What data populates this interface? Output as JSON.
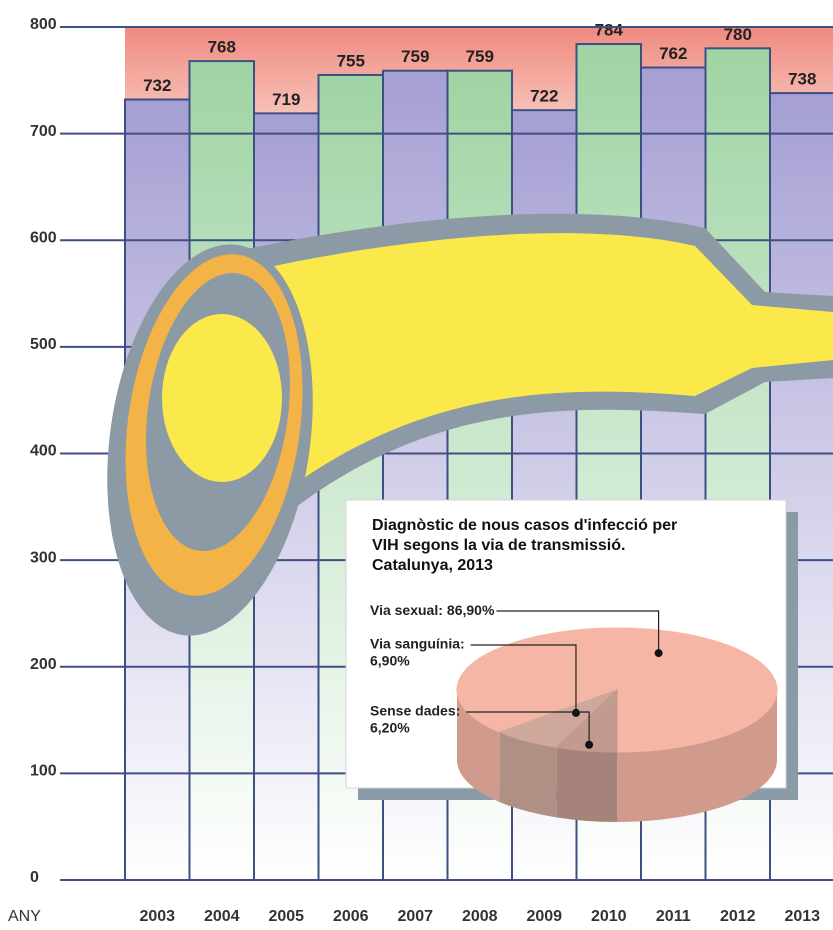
{
  "chart_data": [
    {
      "type": "bar",
      "xlabel": "ANY",
      "categories": [
        "2003",
        "2004",
        "2005",
        "2006",
        "2007",
        "2008",
        "2009",
        "2010",
        "2011",
        "2012",
        "2013"
      ],
      "values": [
        732,
        768,
        719,
        755,
        759,
        759,
        722,
        784,
        762,
        780,
        738
      ],
      "colors": [
        "#a59fd3",
        "#9fd4a3",
        "#a59fd3",
        "#9fd4a3",
        "#a59fd3",
        "#9fd4a3",
        "#a59fd3",
        "#9fd4a3",
        "#a59fd3",
        "#9fd4a3",
        "#a59fd3"
      ],
      "ylim": [
        0,
        800
      ],
      "yticks": [
        0,
        100,
        200,
        300,
        400,
        500,
        600,
        700,
        800
      ],
      "grid": true
    },
    {
      "type": "pie",
      "title": "Diagnòstic de nous casos d'infecció per VIH segons la via de transmissió. Catalunya, 2013",
      "categories": [
        "Via sexual:",
        "Via sanguínia:",
        "Sense dades:"
      ],
      "values": [
        86.9,
        6.9,
        6.2
      ],
      "value_labels": [
        "86,90%",
        "6,90%",
        "6,20%"
      ],
      "colors": [
        "#f5b6a6",
        "#cfa89c",
        "#c39a90"
      ]
    }
  ]
}
